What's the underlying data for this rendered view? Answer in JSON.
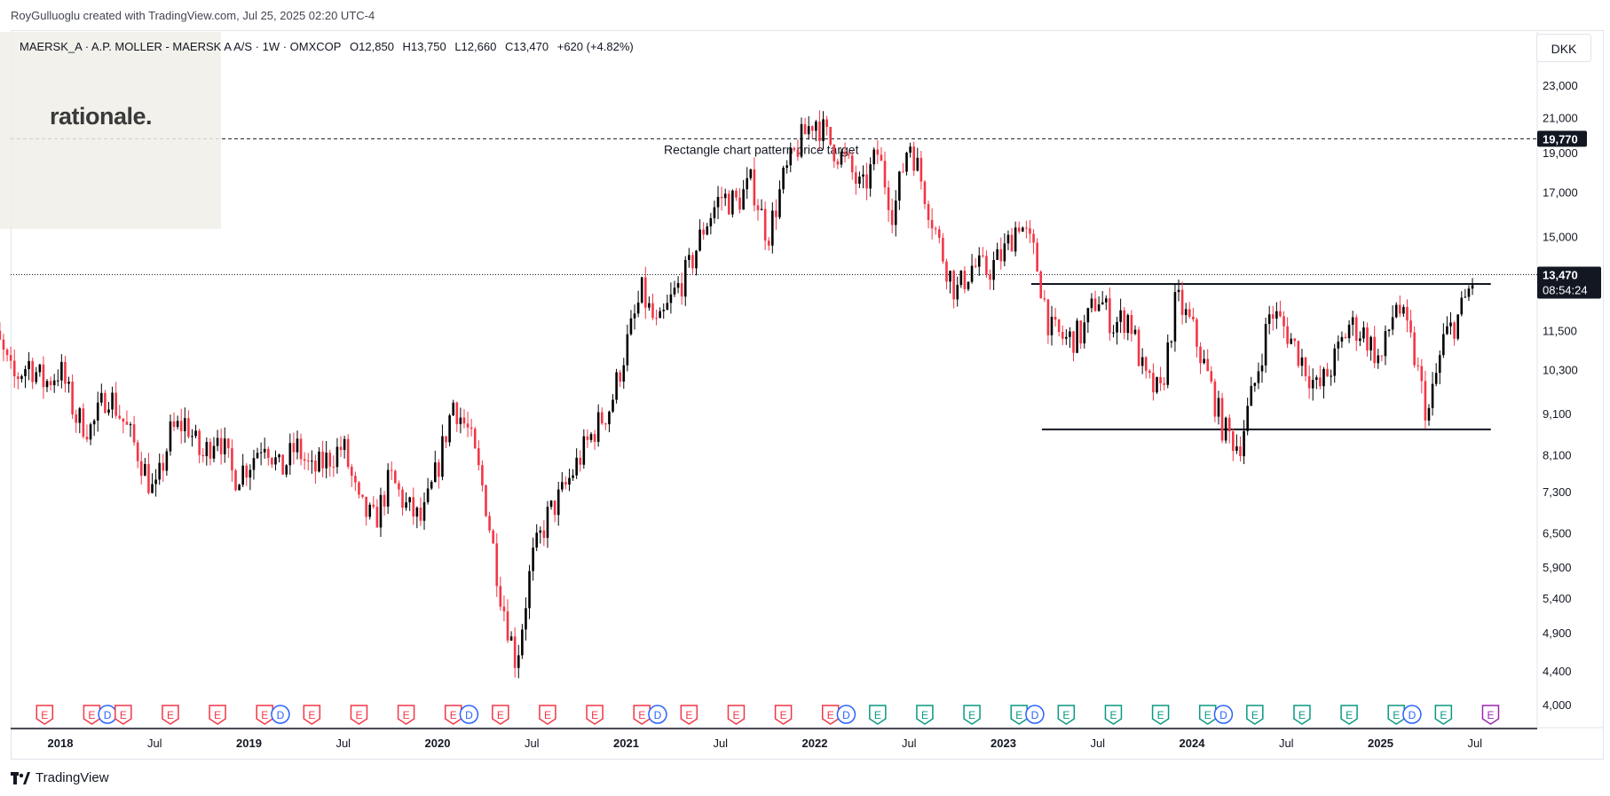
{
  "caption": "RoyGulluoglu created with TradingView.com, Jul 25, 2025 02:20 UTC-4",
  "legend": {
    "symbol": "MAERSK_A · A.P. MOLLER - MAERSK A A/S · 1W · OMXCOP",
    "open": "O12,850",
    "high": "H13,750",
    "low": "L12,660",
    "close": "C13,470",
    "change": "+620 (+4.82%)"
  },
  "watermark_logo": "rationale.",
  "currency": "DKK",
  "brand": "TradingView",
  "colors": {
    "up": "#000000",
    "down": "#f23645",
    "earnings": "#f23645",
    "earnings_future": "#9c27b0",
    "dividend": "#2962ff",
    "earnings_green": "#089981"
  },
  "chart_data": {
    "type": "candlestick",
    "title": "",
    "xlabel": "",
    "ylabel": "",
    "y_scale": "log",
    "ylim": [
      3800,
      25000
    ],
    "y_ticks": [
      23000,
      21000,
      19000,
      17000,
      15000,
      11500,
      10300,
      9100,
      8100,
      7300,
      6500,
      5900,
      5400,
      4900,
      4400,
      4000
    ],
    "y_tick_labels": [
      "23,000",
      "21,000",
      "19,000",
      "17,000",
      "15,000",
      "11,500",
      "10,300",
      "9,100",
      "8,100",
      "7,300",
      "6,500",
      "5,900",
      "5,400",
      "4,900",
      "4,400",
      "4,000"
    ],
    "x_ticks": [
      "2018",
      "Jul",
      "2019",
      "Jul",
      "2020",
      "Jul",
      "2021",
      "Jul",
      "2022",
      "Jul",
      "2023",
      "Jul",
      "2024",
      "Jul",
      "2025",
      "Jul"
    ],
    "x_tick_dates": [
      "2018-01",
      "2018-07",
      "2019-01",
      "2019-07",
      "2020-01",
      "2020-07",
      "2021-01",
      "2021-07",
      "2022-01",
      "2022-07",
      "2023-01",
      "2023-07",
      "2024-01",
      "2024-07",
      "2025-01",
      "2025-07"
    ],
    "last_price": {
      "value": 13470,
      "label": "13,470",
      "countdown": "08:54:24"
    },
    "price_target": {
      "value": 19770,
      "label": "19,770",
      "text": "Rectangle chart pattern price target"
    },
    "rectangle_lines": [
      {
        "value": 13120,
        "from": "2023-03",
        "to": "2025-07"
      },
      {
        "value": 8700,
        "from": "2023-03",
        "to": "2025-07"
      }
    ],
    "price_path": [
      [
        "2017-08",
        10900
      ],
      [
        "2017-09",
        11200
      ],
      [
        "2017-10",
        10000
      ],
      [
        "2017-11",
        10500
      ],
      [
        "2017-12",
        9900
      ],
      [
        "2018-01",
        10300
      ],
      [
        "2018-02",
        9000
      ],
      [
        "2018-03",
        8700
      ],
      [
        "2018-04",
        9700
      ],
      [
        "2018-05",
        8900
      ],
      [
        "2018-06",
        8100
      ],
      [
        "2018-07",
        7200
      ],
      [
        "2018-08",
        8600
      ],
      [
        "2018-09",
        8900
      ],
      [
        "2018-10",
        8000
      ],
      [
        "2018-11",
        8700
      ],
      [
        "2018-12",
        7600
      ],
      [
        "2019-01",
        7900
      ],
      [
        "2019-02",
        8500
      ],
      [
        "2019-03",
        7700
      ],
      [
        "2019-04",
        8300
      ],
      [
        "2019-05",
        7700
      ],
      [
        "2019-06",
        8000
      ],
      [
        "2019-07",
        8300
      ],
      [
        "2019-08",
        7000
      ],
      [
        "2019-09",
        6700
      ],
      [
        "2019-10",
        7600
      ],
      [
        "2019-11",
        7000
      ],
      [
        "2019-12",
        6700
      ],
      [
        "2020-01",
        7800
      ],
      [
        "2020-02",
        9400
      ],
      [
        "2020-03",
        8600
      ],
      [
        "2020-04",
        7200
      ],
      [
        "2020-05",
        5500
      ],
      [
        "2020-06",
        4500
      ],
      [
        "2020-07",
        6000
      ],
      [
        "2020-08",
        6800
      ],
      [
        "2020-09",
        7300
      ],
      [
        "2020-10",
        8000
      ],
      [
        "2020-11",
        8700
      ],
      [
        "2020-12",
        9300
      ],
      [
        "2021-01",
        11000
      ],
      [
        "2021-02",
        12800
      ],
      [
        "2021-03",
        11500
      ],
      [
        "2021-04",
        12700
      ],
      [
        "2021-05",
        13700
      ],
      [
        "2021-06",
        15500
      ],
      [
        "2021-07",
        16800
      ],
      [
        "2021-08",
        16500
      ],
      [
        "2021-09",
        17500
      ],
      [
        "2021-10",
        15000
      ],
      [
        "2021-11",
        17600
      ],
      [
        "2021-12",
        19500
      ],
      [
        "2022-01",
        21000
      ],
      [
        "2022-02",
        19500
      ],
      [
        "2022-03",
        18500
      ],
      [
        "2022-04",
        17000
      ],
      [
        "2022-05",
        19000
      ],
      [
        "2022-06",
        16000
      ],
      [
        "2022-07",
        19800
      ],
      [
        "2022-08",
        17000
      ],
      [
        "2022-09",
        14500
      ],
      [
        "2022-10",
        12800
      ],
      [
        "2022-11",
        13800
      ],
      [
        "2022-12",
        13600
      ],
      [
        "2023-01",
        14300
      ],
      [
        "2023-02",
        15700
      ],
      [
        "2023-03",
        14200
      ],
      [
        "2023-04",
        11500
      ],
      [
        "2023-05",
        11200
      ],
      [
        "2023-06",
        11400
      ],
      [
        "2023-07",
        12700
      ],
      [
        "2023-08",
        11700
      ],
      [
        "2023-09",
        12000
      ],
      [
        "2023-10",
        10000
      ],
      [
        "2023-11",
        9600
      ],
      [
        "2023-12",
        12600
      ],
      [
        "2024-01",
        11600
      ],
      [
        "2024-02",
        10100
      ],
      [
        "2024-03",
        8700
      ],
      [
        "2024-04",
        8300
      ],
      [
        "2024-05",
        9900
      ],
      [
        "2024-06",
        12200
      ],
      [
        "2024-07",
        11500
      ],
      [
        "2024-08",
        10600
      ],
      [
        "2024-09",
        9700
      ],
      [
        "2024-10",
        10500
      ],
      [
        "2024-11",
        11700
      ],
      [
        "2024-12",
        11400
      ],
      [
        "2025-01",
        10500
      ],
      [
        "2025-02",
        12500
      ],
      [
        "2025-03",
        11000
      ],
      [
        "2025-04",
        9000
      ],
      [
        "2025-05",
        11200
      ],
      [
        "2025-06",
        12000
      ],
      [
        "2025-07",
        13470
      ]
    ],
    "event_markers": [
      [
        "2017-12",
        "E"
      ],
      [
        "2018-03",
        "E"
      ],
      [
        "2018-04",
        "D"
      ],
      [
        "2018-05",
        "E"
      ],
      [
        "2018-08",
        "E"
      ],
      [
        "2018-11",
        "E"
      ],
      [
        "2019-02",
        "E"
      ],
      [
        "2019-03",
        "D"
      ],
      [
        "2019-05",
        "E"
      ],
      [
        "2019-08",
        "E"
      ],
      [
        "2019-11",
        "E"
      ],
      [
        "2020-02",
        "E"
      ],
      [
        "2020-03",
        "D"
      ],
      [
        "2020-05",
        "E"
      ],
      [
        "2020-08",
        "E"
      ],
      [
        "2020-11",
        "E"
      ],
      [
        "2021-02",
        "E"
      ],
      [
        "2021-03",
        "D"
      ],
      [
        "2021-05",
        "E"
      ],
      [
        "2021-08",
        "E"
      ],
      [
        "2021-11",
        "E"
      ],
      [
        "2022-02",
        "E"
      ],
      [
        "2022-03",
        "D"
      ],
      [
        "2022-05",
        "E"
      ],
      [
        "2022-08",
        "E"
      ],
      [
        "2022-11",
        "E"
      ],
      [
        "2023-02",
        "E"
      ],
      [
        "2023-03",
        "D"
      ],
      [
        "2023-05",
        "E"
      ],
      [
        "2023-08",
        "E"
      ],
      [
        "2023-11",
        "E"
      ],
      [
        "2024-02",
        "E"
      ],
      [
        "2024-03",
        "D"
      ],
      [
        "2024-05",
        "E"
      ],
      [
        "2024-08",
        "E"
      ],
      [
        "2024-11",
        "E"
      ],
      [
        "2025-02",
        "E"
      ],
      [
        "2025-03",
        "D"
      ],
      [
        "2025-05",
        "E"
      ],
      [
        "2025-08",
        "E"
      ]
    ]
  }
}
